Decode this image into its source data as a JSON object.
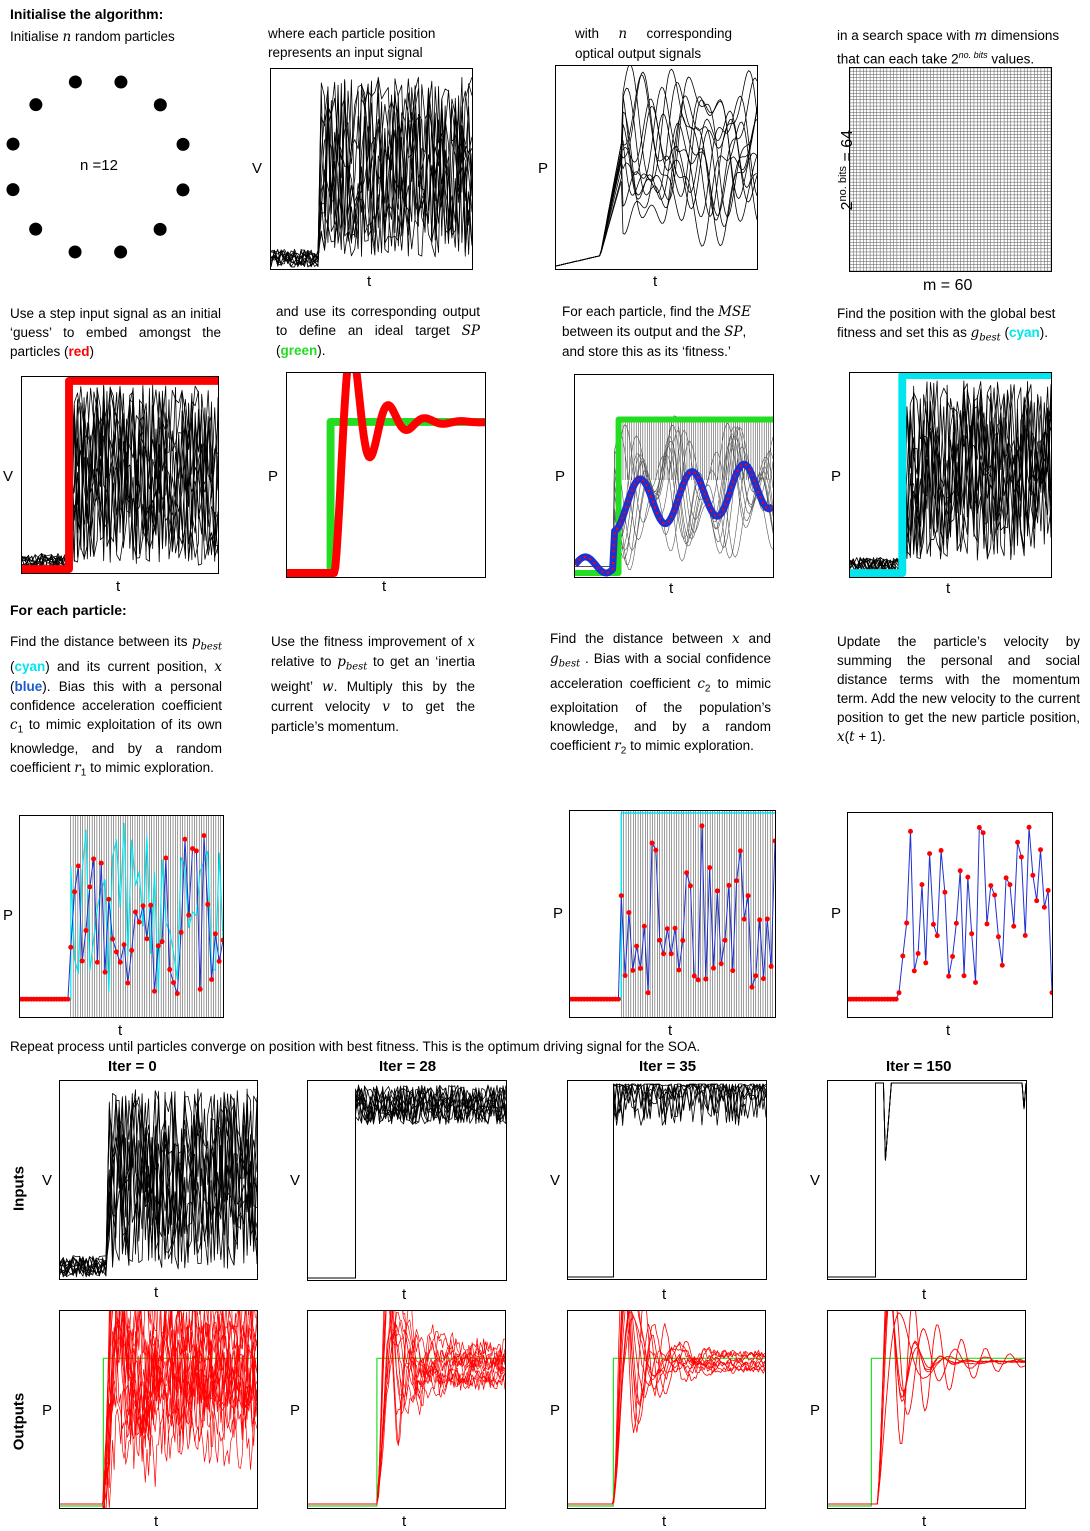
{
  "colors": {
    "red": "#ff0000",
    "green": "#22dd22",
    "cyan": "#00e5ee",
    "blue": "#1f2fd0",
    "black": "#000000"
  },
  "section1": {
    "heading": "Initialise the algorithm:",
    "p1": "Initialise n random particles",
    "p1_a": "Initialise ",
    "p1_var": "n",
    "p1_b": " random particles",
    "n_label": "n =12",
    "p2": "where each particle position represents an input signal",
    "p3_a": "with ",
    "p3_var": "n",
    "p3_b": " corresponding optical output signals",
    "p4_a": "in a search space with ",
    "p4_var": "m",
    "p4_b": " dimensions that can each take ",
    "p4_sup": "no. bits",
    "p4_c": " values.",
    "p4_two": "2",
    "grid_ylabel": "2no. bits = 64",
    "grid_ylabel_base": "2",
    "grid_ylabel_sup": "no. bits",
    "grid_ylabel_rest": " = 64",
    "grid_xlabel": "m = 60"
  },
  "section2": {
    "p1_a": "Use a step input signal as an initial ‘guess’ to embed amongst the particles (",
    "p1_red": "red",
    "p1_b": ")",
    "p2_a": "and use its corresponding output to define an ideal target ",
    "p2_var": "SP",
    "p2_b": " (",
    "p2_green": "green",
    "p2_c": ").",
    "p3_a": "For each particle, find the ",
    "p3_var1": "MSE",
    "p3_b": " between its output and the ",
    "p3_var2": "SP",
    "p3_c": ", and store this as its ‘fitness.’",
    "p4_a": "Find the position with the global best fitness and set this as ",
    "p4_var": "g",
    "p4_sub": "best",
    "p4_b": " (",
    "p4_cyan": "cyan",
    "p4_c": ")."
  },
  "section3": {
    "heading": "For each particle:",
    "p1_a": "Find the distance between its ",
    "p1_var": "p",
    "p1_sub": "best",
    "p1_b": " (",
    "p1_cyan": "cyan",
    "p1_c": ") and its current position, ",
    "p1_var2": "x",
    "p1_d": " (",
    "p1_blue": "blue",
    "p1_e": "). Bias this with a personal confidence acceleration coefficient ",
    "p1_c1": "c",
    "p1_c1sub": "1",
    "p1_f": " to mimic exploitation of its own knowledge, and by a random coefficient ",
    "p1_r1": "r",
    "p1_r1sub": "1",
    "p1_g": " to mimic exploration.",
    "p2_a": "Use the fitness improvement of ",
    "p2_var": "x",
    "p2_b": " relative to ",
    "p2_var2": "p",
    "p2_sub": "best",
    "p2_c": " to get an ‘inertia weight’ ",
    "p2_w": "w",
    "p2_d": ". Multiply this by the current velocity ",
    "p2_v": "v",
    "p2_e": " to get the particle’s momentum.",
    "p3_a": "Find the distance between ",
    "p3_x": "x",
    "p3_b": " and ",
    "p3_g": "g",
    "p3_gsub": "best",
    "p3_c": " . Bias with a social confidence acceleration coefficient ",
    "p3_c2": "c",
    "p3_c2sub": "2",
    "p3_d": " to mimic exploitation of the population’s knowledge, and by a random coefficient ",
    "p3_r2": "r",
    "p3_r2sub": "2",
    "p3_e": " to mimic exploration.",
    "p4_a": "Update the particle’s velocity by summing the personal and social distance terms with the momentum term. Add the new velocity to the current position to get the new particle position, ",
    "p4_x": "x",
    "p4_b": "(",
    "p4_t": "t",
    "p4_c": " + 1)."
  },
  "section4": {
    "intro": "Repeat process until particles converge on position with best fitness. This is the optimum driving signal for the SOA.",
    "iters": [
      "Iter = 0",
      "Iter = 28",
      "Iter = 35",
      "Iter = 150"
    ],
    "row_labels": [
      "Inputs",
      "Outputs"
    ]
  },
  "axes": {
    "V": "V",
    "P": "P",
    "t": "t"
  }
}
